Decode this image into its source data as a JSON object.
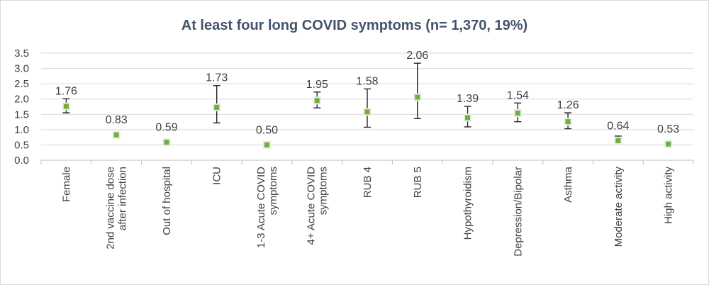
{
  "chart_data": {
    "type": "scatter",
    "title": "At least four long COVID symptoms (n= 1,370, 19%)",
    "ylim": [
      0,
      3.5
    ],
    "y_ticks": [
      "0.0",
      "0.5",
      "1.0",
      "1.5",
      "2.0",
      "2.5",
      "3.0",
      "3.5"
    ],
    "grid": true,
    "legend": "none",
    "marker_color": "#70ad47",
    "error_bar_color": "#262626",
    "categories": [
      [
        "Female"
      ],
      [
        "2nd vaccine dose",
        "after infection"
      ],
      [
        "Out of hospital"
      ],
      [
        "ICU"
      ],
      [
        "1-3 Acute COVID",
        "symptoms"
      ],
      [
        "4+ Acute COVID",
        "symptoms"
      ],
      [
        "RUB 4"
      ],
      [
        "RUB 5"
      ],
      [
        "Hypothyroidism"
      ],
      [
        "Depression/Bipolar"
      ],
      [
        "Asthma"
      ],
      [
        "Moderate activity"
      ],
      [
        "High activity"
      ]
    ],
    "series": [
      {
        "values": [
          1.76,
          0.83,
          0.59,
          1.73,
          0.5,
          1.95,
          1.58,
          2.06,
          1.39,
          1.54,
          1.26,
          0.64,
          0.53
        ],
        "labels": [
          "1.76",
          "0.83",
          "0.59",
          "1.73",
          "0.50",
          "1.95",
          "1.58",
          "2.06",
          "1.39",
          "1.54",
          "1.26",
          "0.64",
          "0.53"
        ],
        "ci_lower": [
          1.55,
          0.76,
          0.53,
          1.22,
          0.45,
          1.71,
          1.08,
          1.36,
          1.09,
          1.26,
          1.03,
          0.55,
          0.46
        ],
        "ci_upper": [
          2.01,
          0.91,
          0.66,
          2.44,
          0.55,
          2.23,
          2.33,
          3.17,
          1.76,
          1.87,
          1.55,
          0.79,
          0.61
        ]
      }
    ]
  }
}
